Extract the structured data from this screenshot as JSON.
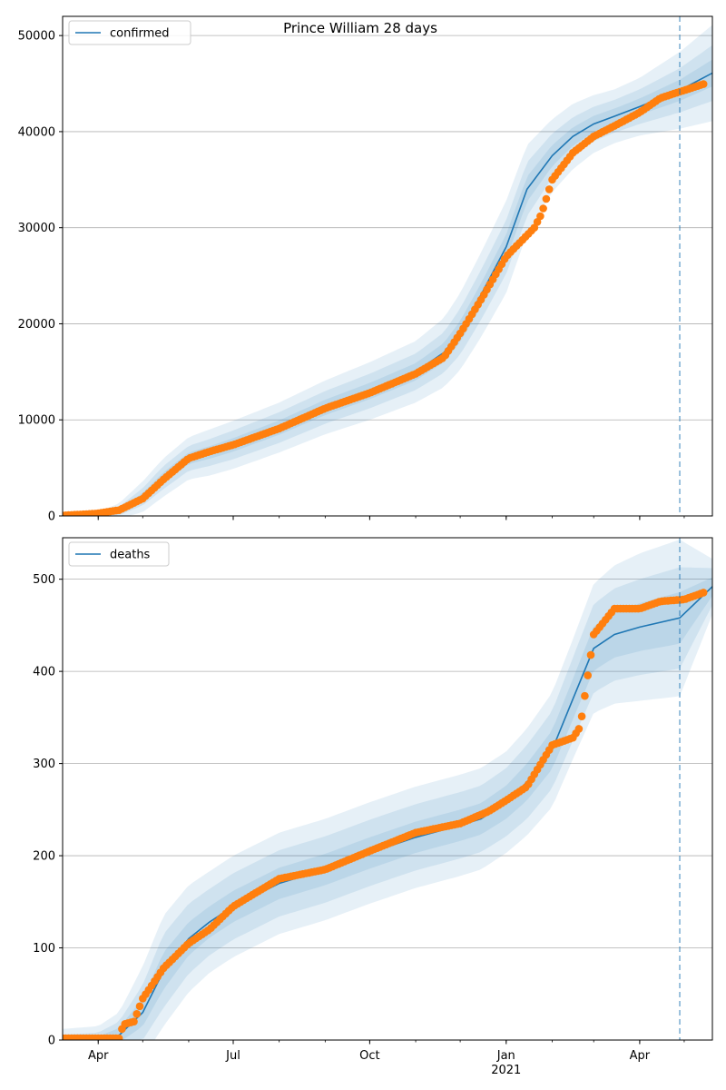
{
  "chart_data": [
    {
      "type": "line",
      "title": "Prince William 28 days",
      "xlabel": "",
      "ylabel": "",
      "x_range": [
        "2020-03-08",
        "2021-05-20"
      ],
      "ylim": [
        0,
        52000
      ],
      "yticks": [
        0,
        10000,
        20000,
        30000,
        40000,
        50000
      ],
      "xticks": [
        {
          "date": "2020-04-01",
          "label": "Apr"
        },
        {
          "date": "2020-07-01",
          "label": "Jul"
        },
        {
          "date": "2020-10-01",
          "label": "Oct"
        },
        {
          "date": "2021-01-01",
          "label": "Jan",
          "sublabel": "2021"
        },
        {
          "date": "2021-04-01",
          "label": "Apr"
        }
      ],
      "grid": "horizontal",
      "legend": "top-left",
      "forecast_start": "2021-04-28",
      "series": [
        {
          "name": "confirmed",
          "kind": "model",
          "color": "#1f77b4",
          "x": [
            "2020-03-08",
            "2020-04-01",
            "2020-04-15",
            "2020-05-01",
            "2020-05-15",
            "2020-06-01",
            "2020-06-15",
            "2020-07-01",
            "2020-08-01",
            "2020-09-01",
            "2020-10-01",
            "2020-11-01",
            "2020-11-20",
            "2020-12-01",
            "2020-12-15",
            "2021-01-01",
            "2021-01-15",
            "2021-02-01",
            "2021-02-15",
            "2021-03-01",
            "2021-03-15",
            "2021-04-01",
            "2021-04-28",
            "2021-05-20"
          ],
          "y": [
            0,
            150,
            500,
            2000,
            4000,
            6000,
            6600,
            7400,
            9200,
            11300,
            13000,
            15000,
            17000,
            19200,
            23000,
            28000,
            34000,
            37500,
            39500,
            40800,
            41600,
            42600,
            44300,
            46100
          ],
          "band_widths": [
            [
              50,
              300,
              800,
              1600,
              2000,
              2200,
              2400,
              2500,
              2600,
              2800,
              3000,
              3200,
              3600,
              4000,
              4400,
              4800,
              4600,
              3800,
              3400,
              3000,
              2800,
              3000,
              4000,
              5000
            ],
            [
              30,
              150,
              450,
              900,
              1200,
              1300,
              1400,
              1500,
              1600,
              1700,
              1800,
              1900,
              2100,
              2400,
              2600,
              2800,
              2800,
              2300,
              2000,
              1800,
              1700,
              1800,
              2300,
              2900
            ],
            [
              15,
              70,
              200,
              400,
              550,
              600,
              650,
              700,
              750,
              800,
              850,
              900,
              1000,
              1100,
              1200,
              1300,
              1300,
              1100,
              950,
              850,
              800,
              850,
              1100,
              1400
            ]
          ]
        },
        {
          "name": "",
          "kind": "observed",
          "color": "#ff7f0e",
          "x": [
            "2020-03-08",
            "2020-03-31",
            "2020-04-15",
            "2020-05-01",
            "2020-05-15",
            "2020-06-01",
            "2020-06-15",
            "2020-07-01",
            "2020-08-01",
            "2020-09-01",
            "2020-10-01",
            "2020-11-01",
            "2020-11-20",
            "2020-12-01",
            "2020-12-15",
            "2021-01-01",
            "2021-01-20",
            "2021-01-25",
            "2021-02-01",
            "2021-02-15",
            "2021-03-01",
            "2021-03-15",
            "2021-04-01",
            "2021-04-15",
            "2021-05-15"
          ],
          "y": [
            50,
            250,
            600,
            1800,
            3800,
            6000,
            6700,
            7400,
            9100,
            11200,
            12800,
            14800,
            16500,
            19000,
            22500,
            27000,
            30000,
            31500,
            35000,
            37800,
            39500,
            40600,
            42000,
            43500,
            45000
          ]
        }
      ]
    },
    {
      "type": "line",
      "title": "",
      "xlabel": "",
      "ylabel": "",
      "x_range": [
        "2020-03-08",
        "2021-05-20"
      ],
      "ylim": [
        0,
        545
      ],
      "yticks": [
        0,
        100,
        200,
        300,
        400,
        500
      ],
      "xticks": [
        {
          "date": "2020-04-01",
          "label": "Apr"
        },
        {
          "date": "2020-07-01",
          "label": "Jul"
        },
        {
          "date": "2020-10-01",
          "label": "Oct"
        },
        {
          "date": "2021-01-01",
          "label": "Jan",
          "sublabel": "2021"
        },
        {
          "date": "2021-04-01",
          "label": "Apr"
        }
      ],
      "grid": "horizontal",
      "legend": "top-left",
      "forecast_start": "2021-04-28",
      "series": [
        {
          "name": "deaths",
          "kind": "model",
          "color": "#1f77b4",
          "x": [
            "2020-03-08",
            "2020-04-01",
            "2020-04-15",
            "2020-05-01",
            "2020-05-15",
            "2020-06-01",
            "2020-06-15",
            "2020-07-01",
            "2020-08-01",
            "2020-09-01",
            "2020-10-01",
            "2020-11-01",
            "2020-12-01",
            "2020-12-15",
            "2021-01-01",
            "2021-01-15",
            "2021-02-01",
            "2021-02-15",
            "2021-03-01",
            "2021-03-15",
            "2021-04-01",
            "2021-04-28",
            "2021-05-20"
          ],
          "y": [
            0,
            0,
            5,
            30,
            75,
            110,
            128,
            145,
            170,
            185,
            203,
            220,
            233,
            240,
            258,
            280,
            315,
            370,
            425,
            440,
            448,
            458,
            492
          ],
          "band_widths": [
            [
              12,
              15,
              25,
              50,
              60,
              58,
              55,
              55,
              55,
              55,
              55,
              55,
              55,
              55,
              55,
              58,
              62,
              65,
              70,
              75,
              80,
              85,
              30
            ],
            [
              6,
              8,
              15,
              30,
              40,
              38,
              36,
              36,
              36,
              36,
              36,
              36,
              36,
              36,
              37,
              40,
              42,
              45,
              48,
              50,
              52,
              55,
              20
            ],
            [
              3,
              4,
              8,
              15,
              20,
              18,
              17,
              17,
              17,
              17,
              17,
              17,
              17,
              17,
              18,
              20,
              21,
              22,
              24,
              25,
              26,
              28,
              10
            ]
          ]
        },
        {
          "name": "",
          "kind": "observed",
          "color": "#ff7f0e",
          "x": [
            "2020-03-08",
            "2020-04-01",
            "2020-04-15",
            "2020-04-18",
            "2020-04-25",
            "2020-05-01",
            "2020-05-15",
            "2020-06-01",
            "2020-06-15",
            "2020-07-01",
            "2020-08-01",
            "2020-09-01",
            "2020-10-01",
            "2020-11-01",
            "2020-12-01",
            "2020-12-20",
            "2021-01-01",
            "2021-01-15",
            "2021-02-01",
            "2021-02-15",
            "2021-02-20",
            "2021-03-01",
            "2021-03-15",
            "2021-04-01",
            "2021-04-15",
            "2021-05-01",
            "2021-05-15"
          ],
          "y": [
            2,
            2,
            2,
            17,
            20,
            45,
            78,
            105,
            120,
            145,
            175,
            185,
            205,
            225,
            235,
            248,
            260,
            275,
            320,
            328,
            340,
            440,
            468,
            468,
            476,
            478,
            486
          ]
        }
      ]
    }
  ]
}
